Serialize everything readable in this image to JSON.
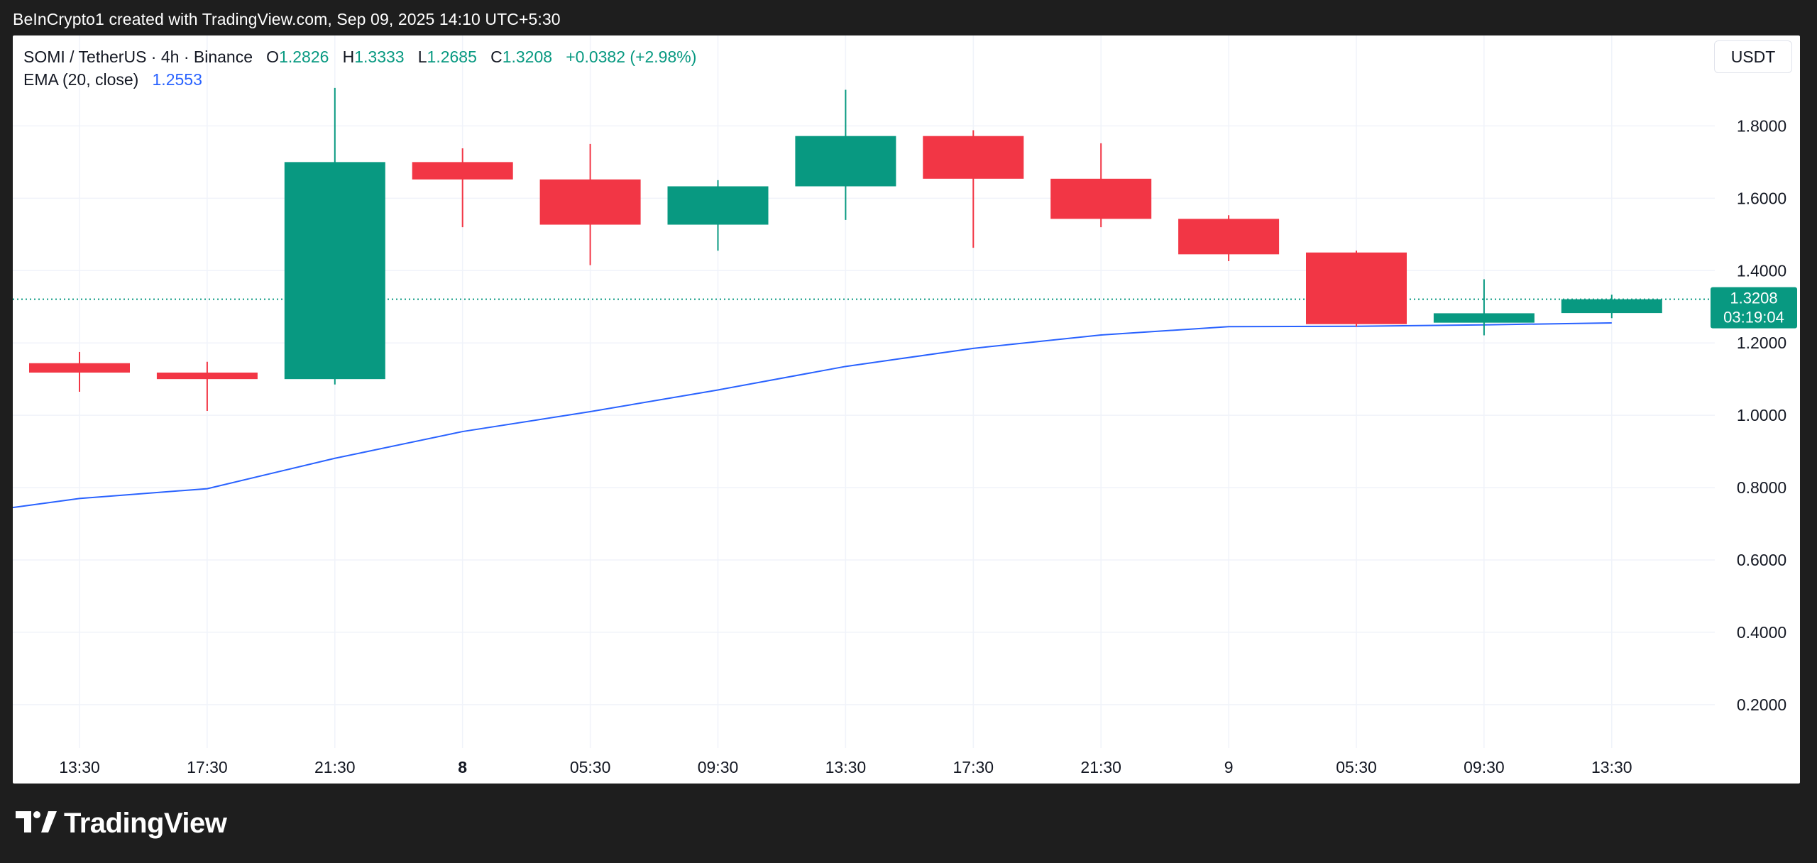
{
  "header": {
    "caption": "BeInCrypto1 created with TradingView.com, Sep 09, 2025 14:10 UTC+5:30"
  },
  "legend": {
    "symbol": "SOMI / TetherUS · 4h · Binance",
    "o_label": "O",
    "o_value": "1.2826",
    "h_label": "H",
    "h_value": "1.3333",
    "l_label": "L",
    "l_value": "1.2685",
    "c_label": "C",
    "c_value": "1.3208",
    "change": "+0.0382 (+2.98%)",
    "ema_label": "EMA (20, close)",
    "ema_value": "1.2553"
  },
  "toolbar": {
    "currency": "USDT"
  },
  "footer": {
    "brand": "TradingView",
    "logo_icon": "tradingview-logo-icon"
  },
  "colors": {
    "up": "#089981",
    "down": "#f23645",
    "ema": "#2962ff",
    "grid": "#f0f3fa",
    "axis_text": "#131722"
  },
  "chart_data": {
    "type": "candlestick",
    "symbol": "SOMI / TetherUS",
    "interval": "4h",
    "exchange": "Binance",
    "ylim": [
      0.08,
      2.05
    ],
    "y_ticks": [
      0.2,
      0.4,
      0.6,
      0.8,
      1.0,
      1.2,
      1.4,
      1.6,
      1.8
    ],
    "y_tick_labels": [
      "0.2000",
      "0.4000",
      "0.6000",
      "0.8000",
      "1.0000",
      "1.2000",
      "1.4000",
      "1.6000",
      "1.8000"
    ],
    "x_labels": [
      "13:30",
      "17:30",
      "21:30",
      "8",
      "05:30",
      "09:30",
      "13:30",
      "17:30",
      "21:30",
      "9",
      "05:30",
      "09:30",
      "13:30"
    ],
    "x_labels_bold": [
      false,
      false,
      false,
      true,
      false,
      false,
      false,
      false,
      false,
      false,
      false,
      false,
      false
    ],
    "candles": [
      {
        "o": 1.144,
        "h": 1.175,
        "l": 1.065,
        "c": 1.118
      },
      {
        "o": 1.118,
        "h": 1.148,
        "l": 1.012,
        "c": 1.1
      },
      {
        "o": 1.1,
        "h": 1.905,
        "l": 1.085,
        "c": 1.7
      },
      {
        "o": 1.7,
        "h": 1.738,
        "l": 1.52,
        "c": 1.652
      },
      {
        "o": 1.652,
        "h": 1.75,
        "l": 1.415,
        "c": 1.527
      },
      {
        "o": 1.527,
        "h": 1.65,
        "l": 1.455,
        "c": 1.633
      },
      {
        "o": 1.633,
        "h": 1.9,
        "l": 1.54,
        "c": 1.772
      },
      {
        "o": 1.772,
        "h": 1.788,
        "l": 1.463,
        "c": 1.654
      },
      {
        "o": 1.654,
        "h": 1.752,
        "l": 1.52,
        "c": 1.543
      },
      {
        "o": 1.543,
        "h": 1.553,
        "l": 1.426,
        "c": 1.445
      },
      {
        "o": 1.45,
        "h": 1.455,
        "l": 1.245,
        "c": 1.252
      },
      {
        "o": 1.256,
        "h": 1.376,
        "l": 1.221,
        "c": 1.282
      },
      {
        "o": 1.2826,
        "h": 1.3333,
        "l": 1.2685,
        "c": 1.3208
      }
    ],
    "ema": {
      "name": "EMA (20, close)",
      "start_value": 0.745,
      "values": [
        0.77,
        0.797,
        0.881,
        0.955,
        1.01,
        1.07,
        1.135,
        1.185,
        1.222,
        1.245,
        1.246,
        1.25,
        1.2553
      ]
    },
    "last_price": {
      "value": 1.3208,
      "label": "1.3208",
      "countdown": "03:19:04"
    }
  }
}
